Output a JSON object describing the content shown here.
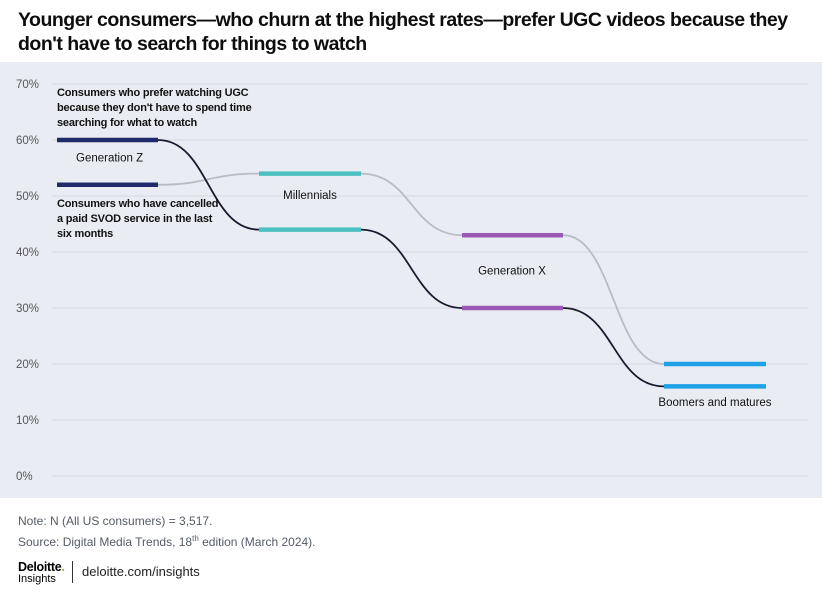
{
  "title": "Younger consumers—who churn at the highest rates—prefer UGC videos because they don't have to search for things to watch",
  "note": "Note: N (All US consumers) = 3,517.",
  "source_prefix": "Source: Digital Media Trends, 18",
  "source_sup": "th",
  "source_suffix": " edition (March 2024).",
  "footer": {
    "brand": "Deloitte",
    "brand_dot": ".",
    "brand_sub": "Insights",
    "url": "deloitte.com/insights"
  },
  "chart_data": {
    "type": "line",
    "categories": [
      "Generation Z",
      "Millennials",
      "Generation X",
      "Boomers and matures"
    ],
    "category_colors": [
      "#1f2a6b",
      "#4cc0c0",
      "#9b59b6",
      "#1ea1e6"
    ],
    "ylim": [
      0,
      70
    ],
    "yticks": [
      0,
      10,
      20,
      30,
      40,
      50,
      60,
      70
    ],
    "ytick_labels": [
      "0%",
      "10%",
      "20%",
      "30%",
      "40%",
      "50%",
      "60%",
      "70%"
    ],
    "grid": true,
    "series": [
      {
        "name": "Consumers who prefer watching UGC because they don't have to spend time searching for what to watch",
        "label_lines": [
          "Consumers who prefer watching UGC",
          "because they don't have to spend time",
          "searching for what to watch"
        ],
        "values": [
          60,
          44,
          30,
          16
        ],
        "line_color": "#1a1a2e"
      },
      {
        "name": "Consumers who have cancelled a paid SVOD service in the last six months",
        "label_lines": [
          "Consumers who have cancelled",
          "a paid SVOD service in the last",
          "six months"
        ],
        "values": [
          52,
          54,
          43,
          20
        ],
        "line_color": "#b8bcc4"
      }
    ]
  }
}
